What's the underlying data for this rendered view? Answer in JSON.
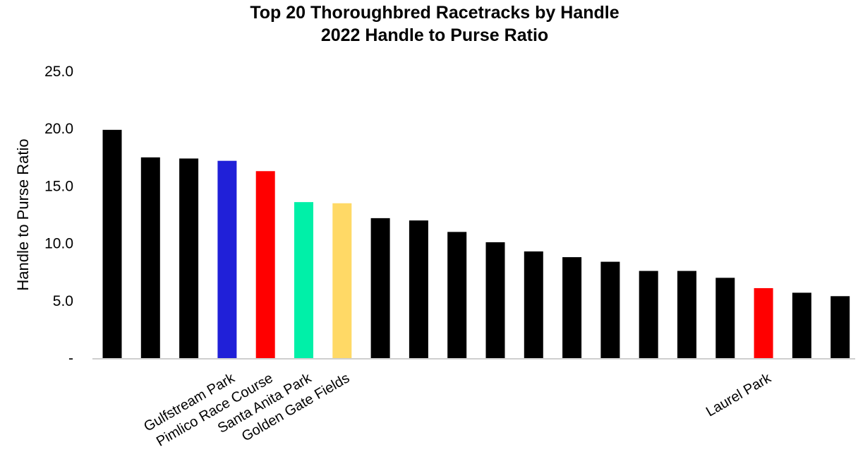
{
  "chart_data": {
    "type": "bar",
    "title": "Top 20 Thoroughbred Racetracks by Handle",
    "subtitle": "2022 Handle to Purse Ratio",
    "xlabel": "",
    "ylabel": "Handle to Purse Ratio",
    "ylim": [
      0,
      25
    ],
    "yticks": [
      "-",
      "5.0",
      "10.0",
      "15.0",
      "20.0",
      "25.0"
    ],
    "grid": false,
    "categories": [
      "",
      "",
      "",
      "Gulfstream Park",
      "Pimlico Race Course",
      "Santa Anita Park",
      "Golden Gate Fields",
      "",
      "",
      "",
      "",
      "",
      "",
      "",
      "",
      "",
      "",
      "Laurel Park",
      "",
      ""
    ],
    "values": [
      19.9,
      17.5,
      17.4,
      17.2,
      16.3,
      13.6,
      13.5,
      12.2,
      12.0,
      11.0,
      10.1,
      9.3,
      8.8,
      8.4,
      7.6,
      7.6,
      7.0,
      6.1,
      5.7,
      5.4
    ],
    "colors": [
      "#000000",
      "#000000",
      "#000000",
      "#2020D8",
      "#FF0000",
      "#00F0A8",
      "#FFD966",
      "#000000",
      "#000000",
      "#000000",
      "#000000",
      "#000000",
      "#000000",
      "#000000",
      "#000000",
      "#000000",
      "#000000",
      "#FF0000",
      "#000000",
      "#000000"
    ]
  }
}
